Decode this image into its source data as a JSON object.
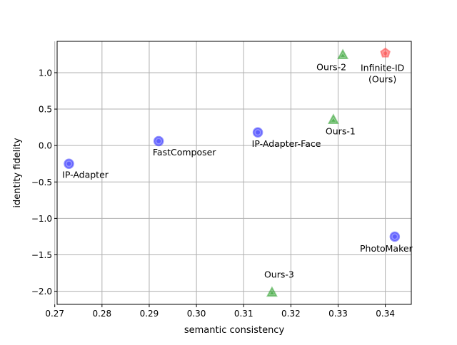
{
  "chart_data": {
    "type": "scatter",
    "xlabel": "semantic consistency",
    "ylabel": "identity fidelity",
    "xlim": [
      0.2705,
      0.3455
    ],
    "ylim": [
      -2.18,
      1.43
    ],
    "xticks": [
      0.27,
      0.28,
      0.29,
      0.3,
      0.31,
      0.32,
      0.33,
      0.34
    ],
    "xtick_labels": [
      "0.27",
      "0.28",
      "0.29",
      "0.30",
      "0.31",
      "0.32",
      "0.33",
      "0.34"
    ],
    "yticks": [
      1.0,
      0.5,
      0.0,
      -0.5,
      -1.0,
      -1.5,
      -2.0
    ],
    "ytick_labels": [
      "1.0",
      "0.5",
      "0.0",
      "−0.5",
      "−1.0",
      "−1.5",
      "−2.0"
    ],
    "grid": true,
    "points": [
      {
        "label": "IP-Adapter",
        "x": 0.273,
        "y": -0.25,
        "marker": "circle",
        "color": "#3b3bff"
      },
      {
        "label": "FastComposer",
        "x": 0.292,
        "y": 0.06,
        "marker": "circle",
        "color": "#3b3bff"
      },
      {
        "label": "IP-Adapter-Face",
        "x": 0.313,
        "y": 0.18,
        "marker": "circle",
        "color": "#3b3bff"
      },
      {
        "label": "PhotoMaker",
        "x": 0.342,
        "y": -1.25,
        "marker": "circle",
        "color": "#3b3bff"
      },
      {
        "label": "Ours-1",
        "x": 0.329,
        "y": 0.35,
        "marker": "triangle",
        "color": "#2ca02c"
      },
      {
        "label": "Ours-2",
        "x": 0.331,
        "y": 1.24,
        "marker": "triangle",
        "color": "#2ca02c"
      },
      {
        "label": "Ours-3",
        "x": 0.316,
        "y": -2.02,
        "marker": "triangle",
        "color": "#2ca02c"
      },
      {
        "label": "Infinite-ID\n(Ours)",
        "x": 0.34,
        "y": 1.27,
        "marker": "pentagon",
        "color": "#ff4d4d"
      }
    ]
  }
}
